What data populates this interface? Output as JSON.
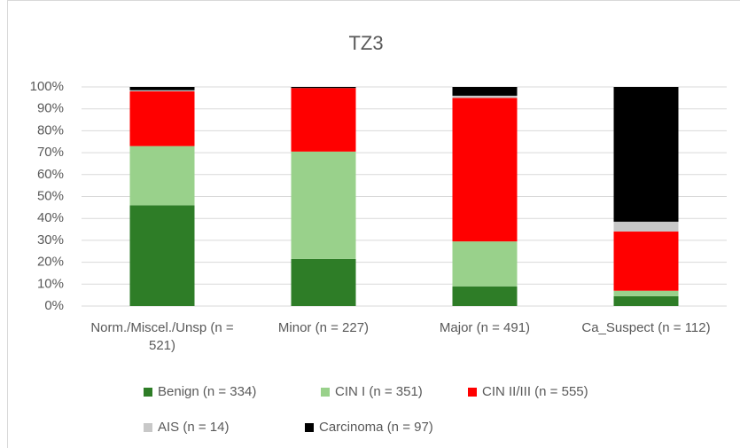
{
  "chart_data": {
    "type": "stacked_bar_percent",
    "title": "TZ3",
    "categories": [
      "Norm./Miscel./Unsp (n = 521)",
      "Minor (n = 227)",
      "Major (n = 491)",
      "Ca_Suspect (n = 112)"
    ],
    "series": [
      {
        "name": "Benign (n = 334)",
        "color": "#2e7d27",
        "values": [
          46,
          21.5,
          9,
          4.5
        ]
      },
      {
        "name": "CIN I (n = 351)",
        "color": "#99d18b",
        "values": [
          27,
          49,
          20.5,
          2.5
        ]
      },
      {
        "name": "CIN II/III (n = 555)",
        "color": "#ff0000",
        "values": [
          25,
          29,
          65.5,
          27
        ]
      },
      {
        "name": "AIS (n = 14)",
        "color": "#c8c8c8",
        "values": [
          0.5,
          0,
          1,
          4.5
        ]
      },
      {
        "name": "Carcinoma (n = 97)",
        "color": "#000000",
        "values": [
          1.5,
          0.5,
          4,
          61.5
        ]
      }
    ],
    "ylim": [
      0,
      100
    ],
    "yticks": [
      {
        "value": 0,
        "label": "0%"
      },
      {
        "value": 10,
        "label": "10%"
      },
      {
        "value": 20,
        "label": "20%"
      },
      {
        "value": 30,
        "label": "30%"
      },
      {
        "value": 40,
        "label": "40%"
      },
      {
        "value": 50,
        "label": "50%"
      },
      {
        "value": 60,
        "label": "60%"
      },
      {
        "value": 70,
        "label": "70%"
      },
      {
        "value": 80,
        "label": "80%"
      },
      {
        "value": 90,
        "label": "90%"
      },
      {
        "value": 100,
        "label": "100%"
      }
    ],
    "grid": true,
    "legend": "bottom"
  }
}
